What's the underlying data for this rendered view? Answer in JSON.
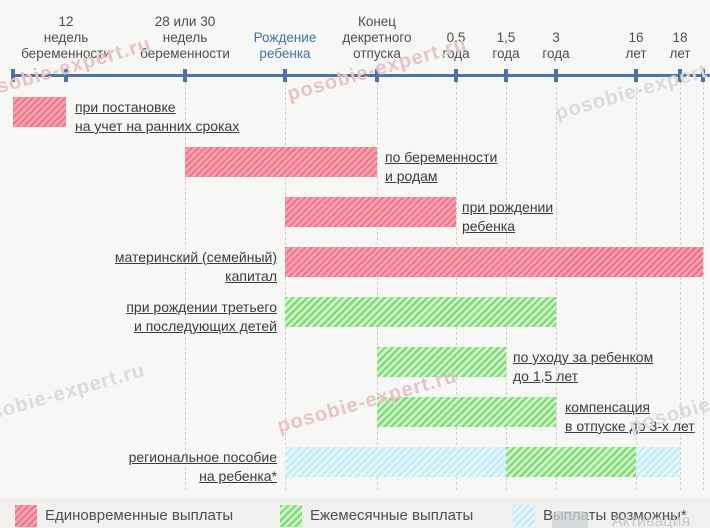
{
  "chart_data": {
    "type": "gantt-timeline",
    "title": "",
    "timeline_ticks": [
      {
        "id": "start",
        "label": ""
      },
      {
        "id": "week12",
        "label": "12\nнедель\nбеременности"
      },
      {
        "id": "week28_30",
        "label": "28 или 30\nнедель\nбеременности"
      },
      {
        "id": "birth",
        "label": "Рождение\nребенка",
        "highlight": true
      },
      {
        "id": "leave_end",
        "label": "Конец\nдекретного\nотпуска"
      },
      {
        "id": "y05",
        "label": "0,5\nгода"
      },
      {
        "id": "y15",
        "label": "1,5\nгода"
      },
      {
        "id": "y3",
        "label": "3\nгода"
      },
      {
        "id": "y16",
        "label": "16\nлет"
      },
      {
        "id": "y18",
        "label": "18\nлет"
      },
      {
        "id": "end",
        "label": ""
      }
    ],
    "rows": [
      {
        "name": "early-registration",
        "label_lines": [
          "при постановке",
          "на учет на ранних сроках"
        ],
        "label_side": "right",
        "segments": [
          {
            "from": "start",
            "to": "week12",
            "type": "one_time"
          }
        ]
      },
      {
        "name": "pregnancy-and-birth",
        "label_lines": [
          "по беременности",
          "и родам"
        ],
        "label_side": "right",
        "segments": [
          {
            "from": "week28_30",
            "to": "leave_end",
            "type": "one_time"
          }
        ]
      },
      {
        "name": "child-birth",
        "label_lines": [
          "при рождении",
          "ребенка"
        ],
        "label_side": "right",
        "segments": [
          {
            "from": "birth",
            "to": "y05",
            "type": "one_time"
          }
        ]
      },
      {
        "name": "maternal-capital",
        "label_lines": [
          "материнский (семейный)",
          "капитал"
        ],
        "label_side": "left",
        "segments": [
          {
            "from": "birth",
            "to": "end",
            "type": "one_time"
          }
        ]
      },
      {
        "name": "third-child",
        "label_lines": [
          "при рождении третьего",
          "и последующих детей"
        ],
        "label_side": "left",
        "segments": [
          {
            "from": "birth",
            "to": "y3",
            "type": "monthly"
          }
        ]
      },
      {
        "name": "childcare-up-to-1-5",
        "label_lines": [
          "по уходу за ребенком",
          "до 1,5 лет"
        ],
        "label_side": "right",
        "segments": [
          {
            "from": "leave_end",
            "to": "y15",
            "type": "monthly"
          }
        ]
      },
      {
        "name": "compensation-up-to-3",
        "label_lines": [
          "компенсация",
          "в отпуске до 3-х лет"
        ],
        "label_side": "right",
        "segments": [
          {
            "from": "leave_end",
            "to": "y3",
            "type": "monthly"
          }
        ]
      },
      {
        "name": "regional-benefit",
        "label_lines": [
          "региональное пособие",
          "на ребенка*"
        ],
        "label_side": "left",
        "segments": [
          {
            "from": "birth",
            "to": "y15",
            "type": "possible"
          },
          {
            "from": "y15",
            "to": "y16",
            "type": "monthly"
          },
          {
            "from": "y16",
            "to": "y18",
            "type": "possible"
          }
        ]
      }
    ],
    "legend": [
      {
        "type": "one_time",
        "label": "Единовременные выплаты"
      },
      {
        "type": "monthly",
        "label": "Ежемесячные выплаты"
      },
      {
        "type": "possible",
        "label": "Выплаты возможны*"
      }
    ],
    "colors": {
      "one_time_base": "#f6a0ae",
      "one_time_stripe": "#ec6a82",
      "monthly_base": "#d2f4ca",
      "monthly_stripe": "#7edb78",
      "possible_base": "#e4f8fb",
      "possible_stripe": "#c3ecf4",
      "axis": "#4a74a2",
      "birth_label": "#4273a6"
    },
    "legend_position": "bottom",
    "grid": "dashed-vertical"
  },
  "watermarks": {
    "site": "posobie-expert.ru",
    "activation": "Активация"
  }
}
